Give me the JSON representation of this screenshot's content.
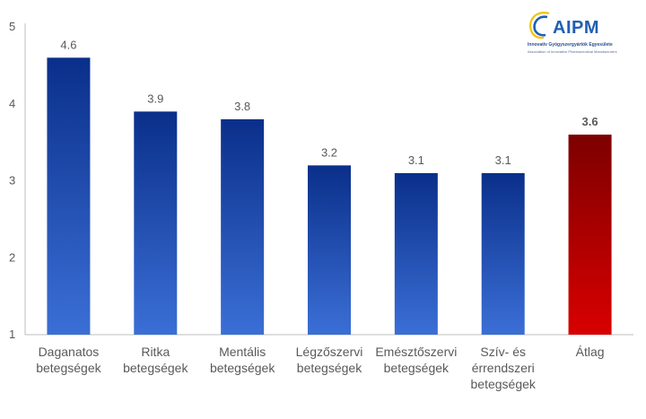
{
  "logo": {
    "name": "AIPM",
    "subtitle": "Innovatív Gyógyszergyártók Egyesülete",
    "subtitle_en": "Association of Innovative Pharmaceutical Manufacturers"
  },
  "chart_data": {
    "type": "bar",
    "title": "",
    "xlabel": "",
    "ylabel": "",
    "ylim": [
      1,
      5
    ],
    "yticks": [
      1,
      2,
      3,
      4,
      5
    ],
    "grid": false,
    "legend": "none",
    "categories": [
      [
        "Daganatos",
        "betegségek"
      ],
      [
        "Ritka",
        "betegségek"
      ],
      [
        "Mentális",
        "betegségek"
      ],
      [
        "Légzőszervi",
        "betegségek"
      ],
      [
        "Emésztőszervi",
        "betegségek"
      ],
      [
        "Szív- és",
        "érrendszeri",
        "betegségek"
      ],
      [
        "Átlag"
      ]
    ],
    "values": [
      4.6,
      3.9,
      3.8,
      3.2,
      3.1,
      3.1,
      3.6
    ],
    "data_labels": [
      "4.6",
      "3.9",
      "3.8",
      "3.2",
      "3.1",
      "3.1",
      "3.6"
    ],
    "highlight_index": 6,
    "colors": {
      "bar_top": "#0a2f8a",
      "bar_bottom": "#3b6fd6",
      "highlight_top": "#7d0000",
      "highlight_bottom": "#d90000",
      "axis": "#bfbfbf",
      "text": "#595959"
    }
  }
}
